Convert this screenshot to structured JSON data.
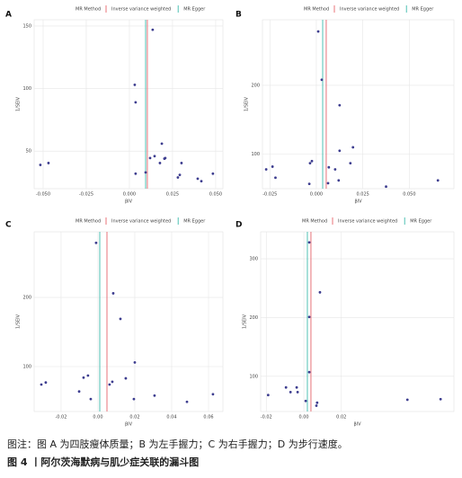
{
  "chart_data": [
    {
      "type": "scatter",
      "label": "A",
      "legend_title": "MR Method",
      "xlabel": "βIV",
      "ylabel": "1/SEIV",
      "color": "#3d3d8f",
      "x": [
        -0.0516,
        -0.0469,
        0.0031,
        0.0036,
        0.0036,
        0.0135,
        0.0094,
        0.012,
        0.0146,
        0.0188,
        0.0177,
        0.0203,
        0.0208,
        0.0281,
        0.0302,
        0.0292,
        0.0396,
        0.0417,
        0.0484
      ],
      "y": [
        39,
        40.5,
        103,
        89,
        32,
        147,
        33,
        44.5,
        46,
        56,
        40.5,
        44,
        44.5,
        29,
        40.5,
        31,
        28,
        26,
        32
      ],
      "estimates": [
        {
          "name": "Inverse variance weighted",
          "color": "#e8737a",
          "value": 0.0104
        },
        {
          "name": "MR Egger",
          "color": "#4fc1b4",
          "value": 0.0094
        }
      ],
      "xlim": [
        -0.0552,
        0.0542
      ],
      "ylim": [
        20,
        155
      ],
      "xticks": [
        {
          "value": -0.05,
          "label": "-0.050"
        },
        {
          "value": -0.025,
          "label": "-0.025"
        },
        {
          "value": 0,
          "label": "0.000"
        },
        {
          "value": 0.025,
          "label": "0.025"
        },
        {
          "value": 0.05,
          "label": "0.050"
        }
      ],
      "yticks": [
        50,
        100,
        150
      ],
      "grid": true
    },
    {
      "type": "scatter",
      "label": "B",
      "legend_title": "MR Method",
      "xlabel": "βIV",
      "ylabel": "1/SEIV",
      "color": "#3d3d8f",
      "x": [
        -0.027,
        -0.0236,
        -0.022,
        -0.0034,
        -0.0024,
        -0.0038,
        0.001,
        0.0029,
        0.0067,
        0.0063,
        0.0101,
        0.0125,
        0.0125,
        0.012,
        0.0183,
        0.0197,
        0.0375,
        0.0654
      ],
      "y": [
        78,
        82,
        66,
        87,
        90,
        57,
        278,
        208,
        81,
        58,
        78,
        105,
        171,
        62,
        87,
        110,
        53,
        62
      ],
      "estimates": [
        {
          "name": "Inverse variance weighted",
          "color": "#e8737a",
          "value": 0.0053
        },
        {
          "name": "MR Egger",
          "color": "#4fc1b4",
          "value": 0.0034
        }
      ],
      "xlim": [
        -0.029,
        0.074
      ],
      "ylim": [
        50,
        295
      ],
      "xticks": [
        {
          "value": -0.025,
          "label": "-0.025"
        },
        {
          "value": 0,
          "label": "0.000"
        },
        {
          "value": 0.025,
          "label": "0.025"
        },
        {
          "value": 0.05,
          "label": "0.050"
        }
      ],
      "yticks": [
        100,
        200
      ],
      "grid": true
    },
    {
      "type": "scatter",
      "label": "C",
      "legend_title": "MR Method",
      "xlabel": "βIV",
      "ylabel": "1/SEIV",
      "color": "#3d3d8f",
      "x": [
        -0.0307,
        -0.0283,
        -0.0102,
        -0.0078,
        -0.0054,
        -0.0039,
        -0.001,
        0.0063,
        0.0078,
        0.0083,
        0.0122,
        0.0151,
        0.02,
        0.0195,
        0.0307,
        0.0483,
        0.0624
      ],
      "y": [
        74,
        77,
        64,
        84,
        87,
        53,
        279,
        74,
        78,
        206,
        169,
        83,
        106,
        53,
        58,
        49,
        60
      ],
      "estimates": [
        {
          "name": "Inverse variance weighted",
          "color": "#e8737a",
          "value": 0.0049
        },
        {
          "name": "MR Egger",
          "color": "#4fc1b4",
          "value": 0.001
        }
      ],
      "xlim": [
        -0.0346,
        0.0678
      ],
      "ylim": [
        35,
        295
      ],
      "xticks": [
        {
          "value": -0.02,
          "label": "-0.02"
        },
        {
          "value": 0,
          "label": "0.00"
        },
        {
          "value": 0.02,
          "label": "0.02"
        },
        {
          "value": 0.04,
          "label": "0.04"
        },
        {
          "value": 0.06,
          "label": "0.06"
        }
      ],
      "yticks": [
        100,
        200
      ],
      "grid": true
    },
    {
      "type": "scatter",
      "label": "D",
      "legend_title": "MR Method",
      "xlabel": "βIV",
      "ylabel": "1/SEIV",
      "color": "#3d3d8f",
      "x": [
        -0.019,
        -0.0095,
        -0.0071,
        -0.0038,
        -0.0033,
        0.001,
        0.0029,
        0.0029,
        0.0029,
        0.0086,
        0.0071,
        0.0067,
        0.0552,
        0.0729
      ],
      "y": [
        68,
        81,
        73,
        81,
        73,
        58,
        107,
        201,
        328,
        243,
        55,
        50,
        60,
        61
      ],
      "estimates": [
        {
          "name": "Inverse variance weighted",
          "color": "#e8737a",
          "value": 0.0038
        },
        {
          "name": "MR Egger",
          "color": "#4fc1b4",
          "value": 0.0019
        }
      ],
      "xlim": [
        -0.023,
        0.08
      ],
      "ylim": [
        40,
        346
      ],
      "xticks": [
        {
          "value": -0.02,
          "label": "-0.02"
        },
        {
          "value": 0,
          "label": "0.00"
        },
        {
          "value": 0.02,
          "label": "0.02"
        }
      ],
      "yticks": [
        100,
        200,
        300
      ],
      "grid": true
    }
  ],
  "caption": {
    "note": "图注：图 A 为四肢瘦体质量；B 为左手握力；C 为右手握力；D 为步行速度。",
    "title": "图 4 丨阿尔茨海默病与肌少症关联的漏斗图"
  }
}
